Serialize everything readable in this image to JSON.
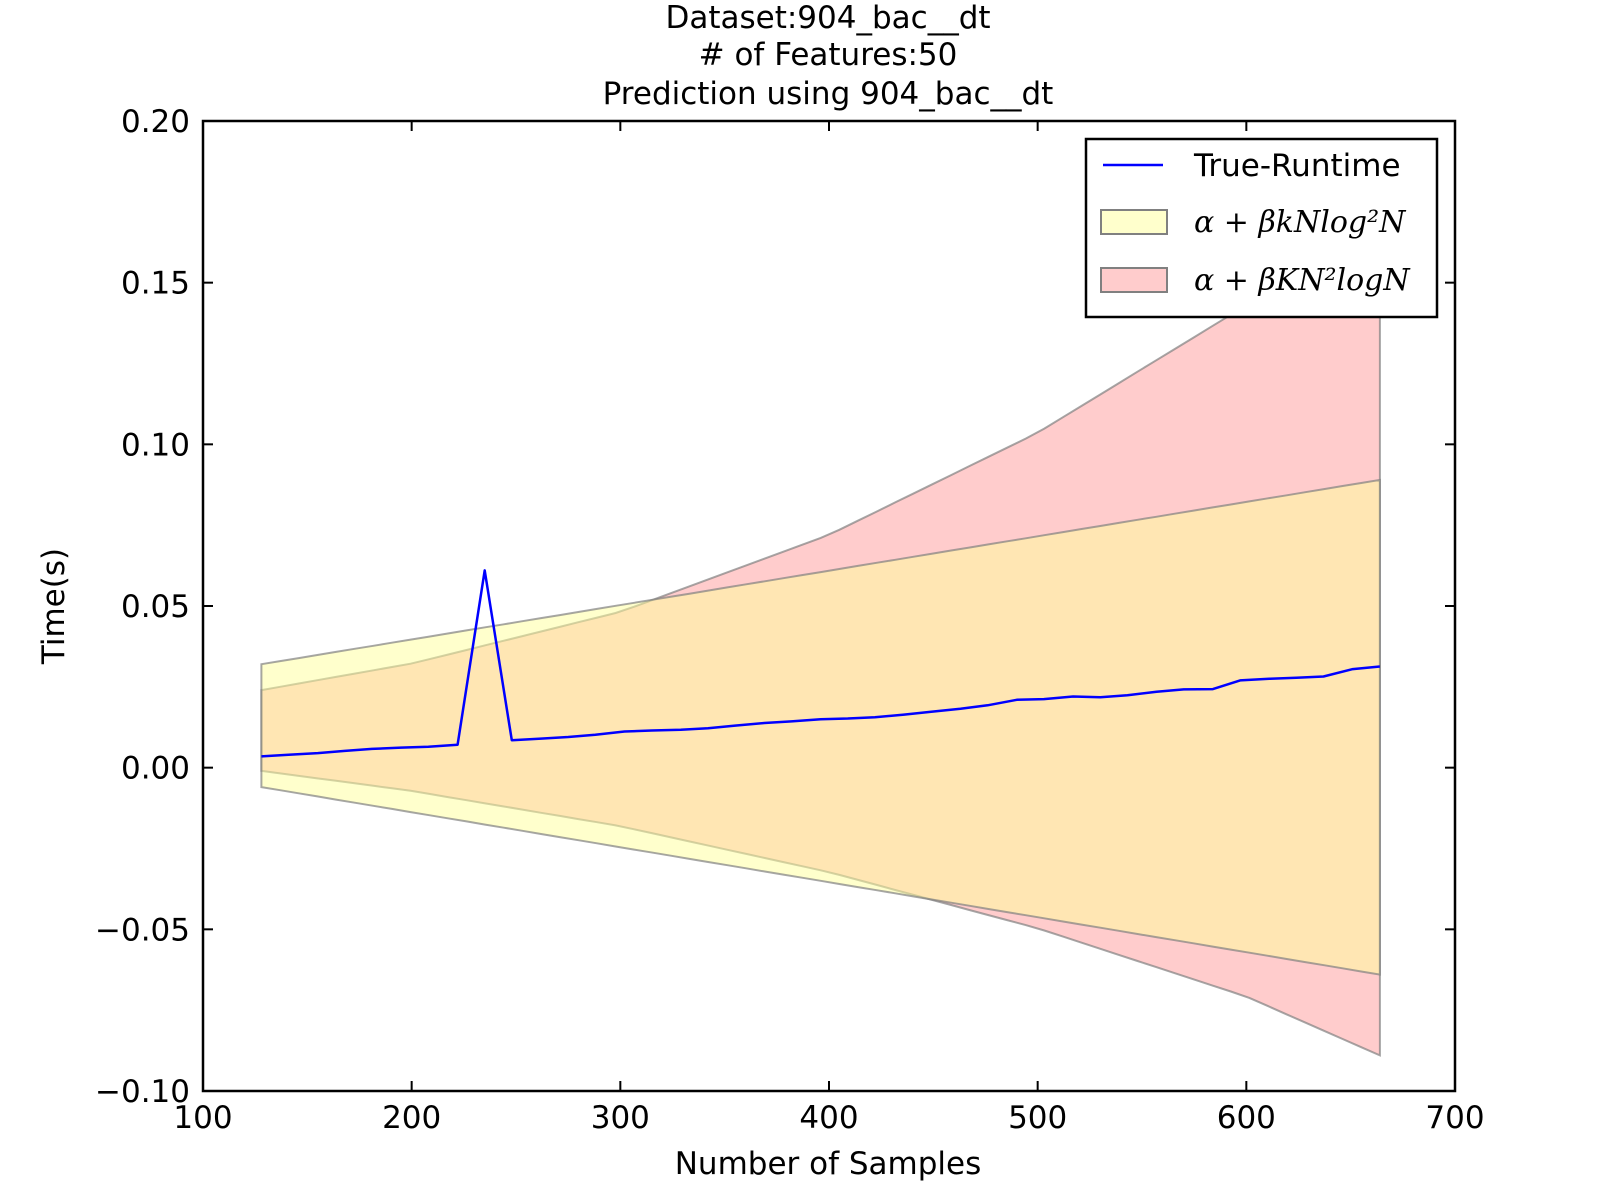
{
  "chart_data": {
    "type": "line",
    "title_lines": [
      "Dataset:904_bac__dt",
      "# of Features:50",
      "Prediction using 904_bac__dt"
    ],
    "xlabel": "Number of Samples",
    "ylabel": "Time(s)",
    "xlim": [
      100,
      700
    ],
    "ylim": [
      -0.1,
      0.2
    ],
    "x_ticks": [
      100,
      200,
      300,
      400,
      500,
      600,
      700
    ],
    "x_tick_labels": [
      "100",
      "200",
      "300",
      "400",
      "500",
      "600",
      "700"
    ],
    "y_ticks": [
      -0.1,
      -0.05,
      0.0,
      0.05,
      0.1,
      0.15,
      0.2
    ],
    "y_tick_labels": [
      "−0.10",
      "−0.05",
      "0.00",
      "0.05",
      "0.10",
      "0.15",
      "0.20"
    ],
    "grid": false,
    "legend_position": "top-right",
    "series": [
      {
        "name": "True-Runtime",
        "kind": "line",
        "color": "#0000ff",
        "x": [
          128,
          141,
          155,
          168,
          181,
          195,
          208,
          222,
          235,
          248,
          262,
          275,
          288,
          302,
          315,
          329,
          342,
          355,
          369,
          382,
          396,
          409,
          422,
          436,
          449,
          463,
          476,
          490,
          503,
          517,
          530,
          543,
          557,
          570,
          584,
          597,
          611,
          624,
          637,
          651,
          664
        ],
        "y": [
          0.0035,
          0.004,
          0.0045,
          0.0052,
          0.0058,
          0.0062,
          0.0065,
          0.0071,
          0.061,
          0.0085,
          0.009,
          0.0095,
          0.0102,
          0.0112,
          0.0115,
          0.0117,
          0.0122,
          0.013,
          0.0138,
          0.0143,
          0.015,
          0.0152,
          0.0156,
          0.0164,
          0.0173,
          0.0182,
          0.0193,
          0.021,
          0.0212,
          0.022,
          0.0218,
          0.0224,
          0.0235,
          0.0242,
          0.0243,
          0.027,
          0.0275,
          0.0278,
          0.0282,
          0.0305,
          0.0313
        ]
      },
      {
        "name": "α + βkNlog²N",
        "kind": "band",
        "color": "#ffff99",
        "x": [
          128,
          664
        ],
        "upper": [
          0.032,
          0.089
        ],
        "lower": [
          -0.006,
          -0.064
        ]
      },
      {
        "name": "α + βKN²logN",
        "kind": "band",
        "color": "#ff9999",
        "x": [
          128,
          200,
          300,
          400,
          500,
          600,
          664
        ],
        "upper": [
          0.024,
          0.0322,
          0.0482,
          0.072,
          0.1036,
          0.143,
          0.1715
        ],
        "lower": [
          -0.001,
          -0.0072,
          -0.0181,
          -0.0323,
          -0.0497,
          -0.0708,
          -0.089
        ]
      }
    ]
  }
}
